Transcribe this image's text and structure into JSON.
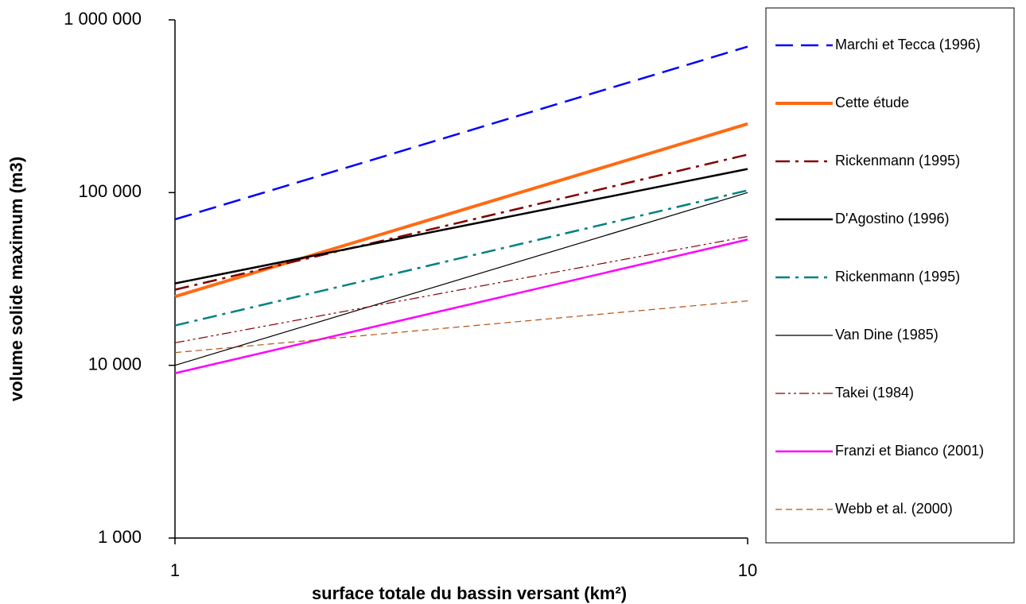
{
  "chart_data": {
    "type": "line",
    "x_label": "surface totale du bassin versant (km²)",
    "y_label": "volume solide maximum (m3)",
    "x": [
      1,
      10
    ],
    "xlim": [
      1,
      10
    ],
    "xticks": [
      1,
      10
    ],
    "xscale": "log",
    "ylim": [
      1000,
      1000000
    ],
    "yscale": "log",
    "yticks": [
      {
        "value": 1000,
        "label": "1 000"
      },
      {
        "value": 10000,
        "label": "10 000"
      },
      {
        "value": 100000,
        "label": "100 000"
      },
      {
        "value": 1000000,
        "label": "1 000 000"
      }
    ],
    "legend": "right",
    "series": [
      {
        "name": "Marchi et Tecca (1996)",
        "color": "#0000ff",
        "style": "dashed",
        "weight": "medium",
        "values": [
          70000,
          700000
        ]
      },
      {
        "name": "Cette étude",
        "color": "#ff6a13",
        "style": "solid",
        "weight": "thick",
        "values": [
          25000,
          250000
        ]
      },
      {
        "name": "Rickenmann (1995)",
        "color": "#800000",
        "style": "dashdot",
        "weight": "medium",
        "values": [
          27400,
          166000
        ]
      },
      {
        "name": "D'Agostino (1996)",
        "color": "#000000",
        "style": "solid",
        "weight": "medium",
        "values": [
          29800,
          137000
        ]
      },
      {
        "name": "Rickenmann (1995)",
        "color": "#008080",
        "style": "dashdot",
        "weight": "medium",
        "values": [
          17000,
          103000
        ]
      },
      {
        "name": "Van Dine (1985)",
        "color": "#000000",
        "style": "solid",
        "weight": "thin",
        "values": [
          10000,
          100000
        ]
      },
      {
        "name": "Takei (1984)",
        "color": "#800000",
        "style": "dashdotdot",
        "weight": "thin",
        "values": [
          13500,
          55700
        ]
      },
      {
        "name": "Franzi et Bianco (2001)",
        "color": "#ff00ff",
        "style": "solid",
        "weight": "medium",
        "values": [
          9000,
          53500
        ]
      },
      {
        "name": "Webb et al. (2000)",
        "color": "#b5500f",
        "style": "shortdash",
        "weight": "thin",
        "values": [
          11850,
          23600
        ]
      }
    ]
  }
}
